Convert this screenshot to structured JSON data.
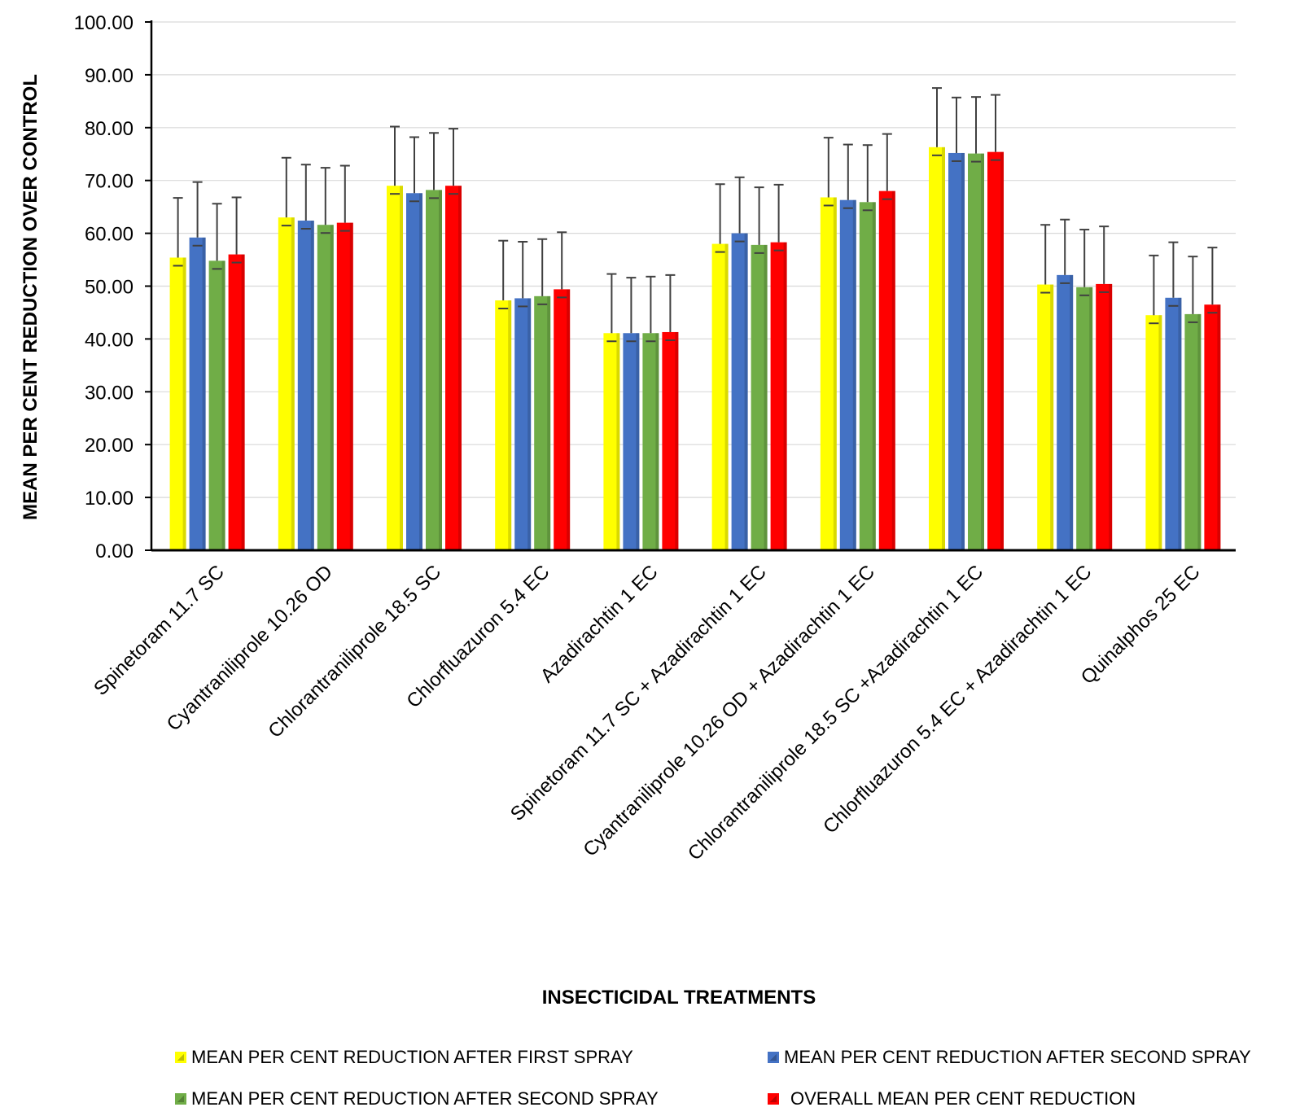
{
  "chart_data": {
    "type": "bar",
    "title": "",
    "xlabel": "INSECTICIDAL TREATMENTS",
    "ylabel": "MEAN PER CENT REDUCTION OVER CONTROL",
    "ylim": [
      0,
      100
    ],
    "yticks": [
      "0.00",
      "10.00",
      "20.00",
      "30.00",
      "40.00",
      "50.00",
      "60.00",
      "70.00",
      "80.00",
      "90.00",
      "100.00"
    ],
    "grid": true,
    "legend_position": "bottom",
    "categories": [
      "Spinetoram 11.7 SC",
      "Cyantraniliprole 10.26 OD",
      "Chlorantraniliprole 18.5 SC",
      "Chlorfluazuron 5.4 EC",
      "Azadirachtin 1 EC",
      "Spinetoram 11.7 SC + Azadirachtin 1 EC",
      "Cyantraniliprole 10.26 OD + Azadirachtin 1 EC",
      "Chlorantraniliprole 18.5 SC +Azadirachtin 1 EC",
      "Chlorfluazuron 5.4 EC + Azadirachtin 1 EC",
      "Quinalphos 25 EC"
    ],
    "series": [
      {
        "name": "MEAN PER CENT REDUCTION AFTER FIRST SPRAY",
        "color": "#FFFF00",
        "values": [
          55.4,
          63.0,
          69.0,
          47.3,
          41.1,
          58.0,
          66.8,
          76.3,
          50.3,
          44.5
        ],
        "errors": [
          11.3,
          11.3,
          11.2,
          11.3,
          11.2,
          11.3,
          11.3,
          11.2,
          11.3,
          11.3
        ]
      },
      {
        "name": "MEAN PER CENT REDUCTION AFTER SECOND SPRAY",
        "color": "#4472C4",
        "values": [
          59.2,
          62.4,
          67.6,
          47.7,
          41.1,
          60.0,
          66.3,
          75.2,
          52.1,
          47.8
        ],
        "errors": [
          10.5,
          10.6,
          10.6,
          10.7,
          10.5,
          10.6,
          10.5,
          10.5,
          10.5,
          10.5
        ]
      },
      {
        "name": "MEAN PER CENT REDUCTION AFTER SECOND SPRAY",
        "color": "#70AD47",
        "values": [
          54.8,
          61.6,
          68.2,
          48.1,
          41.1,
          57.8,
          65.9,
          75.1,
          49.8,
          44.7
        ],
        "errors": [
          10.8,
          10.8,
          10.8,
          10.8,
          10.7,
          10.9,
          10.8,
          10.7,
          10.9,
          10.9
        ]
      },
      {
        "name": "OVERALL MEAN PER CENT REDUCTION",
        "color": "#FF0000",
        "values": [
          56.0,
          62.0,
          69.0,
          49.4,
          41.3,
          58.3,
          68.0,
          75.4,
          50.4,
          46.5
        ],
        "errors": [
          10.8,
          10.8,
          10.8,
          10.8,
          10.8,
          10.9,
          10.8,
          10.8,
          10.9,
          10.8
        ]
      }
    ]
  }
}
